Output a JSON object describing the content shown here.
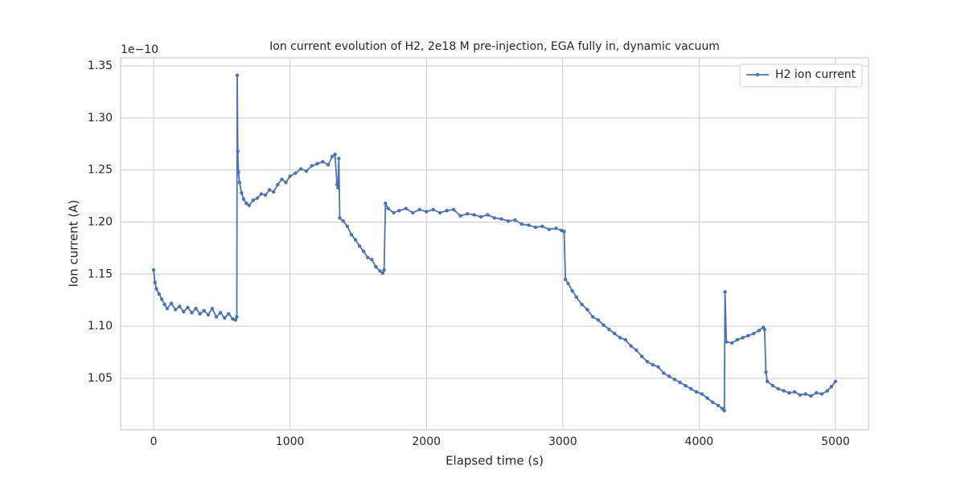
{
  "chart_data": {
    "type": "line",
    "title": "Ion current evolution of H2, 2e18 M pre-injection, EGA fully in, dynamic vacuum",
    "xlabel": "Elapsed time (s)",
    "ylabel": "Ion current (A)",
    "y_offset_label": "1e−10",
    "xlim": [
      -242,
      5242
    ],
    "ylim": [
      1.0006,
      1.3577
    ],
    "xticks": [
      0,
      1000,
      2000,
      3000,
      4000,
      5000
    ],
    "yticks": [
      1.05,
      {
        "value": 1.1,
        "label": "1.10"
      },
      1.15,
      {
        "value": 1.2,
        "label": "1.20"
      },
      1.25,
      {
        "value": 1.3,
        "label": "1.30"
      },
      1.35
    ],
    "grid": true,
    "legend": "upper right",
    "x": [
      0,
      10,
      20,
      40,
      60,
      80,
      100,
      130,
      160,
      190,
      220,
      250,
      280,
      310,
      340,
      370,
      400,
      430,
      460,
      490,
      520,
      550,
      580,
      600,
      610,
      613,
      617,
      622,
      630,
      645,
      660,
      680,
      700,
      730,
      760,
      790,
      820,
      850,
      880,
      910,
      940,
      970,
      1000,
      1040,
      1080,
      1120,
      1160,
      1200,
      1240,
      1280,
      1310,
      1330,
      1345,
      1352,
      1358,
      1365,
      1390,
      1420,
      1450,
      1480,
      1510,
      1540,
      1570,
      1600,
      1630,
      1660,
      1680,
      1690,
      1700,
      1720,
      1760,
      1800,
      1850,
      1900,
      1950,
      2000,
      2050,
      2100,
      2150,
      2200,
      2250,
      2300,
      2350,
      2400,
      2450,
      2500,
      2550,
      2600,
      2650,
      2700,
      2750,
      2800,
      2850,
      2900,
      2950,
      2990,
      3010,
      3020,
      3040,
      3070,
      3100,
      3140,
      3180,
      3220,
      3260,
      3300,
      3340,
      3380,
      3420,
      3460,
      3500,
      3540,
      3580,
      3620,
      3660,
      3700,
      3740,
      3780,
      3820,
      3860,
      3900,
      3940,
      3980,
      4020,
      4060,
      4100,
      4140,
      4170,
      4185,
      4190,
      4200,
      4240,
      4280,
      4320,
      4360,
      4400,
      4440,
      4470,
      4480,
      4490,
      4500,
      4540,
      4580,
      4620,
      4660,
      4700,
      4740,
      4780,
      4820,
      4860,
      4900,
      4940,
      4970,
      5000
    ],
    "series": [
      {
        "name": "H2 ion current",
        "color": "#4c72b0",
        "values": [
          1.154,
          1.142,
          1.136,
          1.131,
          1.126,
          1.121,
          1.117,
          1.122,
          1.116,
          1.119,
          1.114,
          1.118,
          1.113,
          1.117,
          1.112,
          1.115,
          1.111,
          1.117,
          1.109,
          1.113,
          1.108,
          1.112,
          1.107,
          1.106,
          1.109,
          1.341,
          1.268,
          1.248,
          1.238,
          1.228,
          1.222,
          1.218,
          1.216,
          1.221,
          1.223,
          1.227,
          1.226,
          1.231,
          1.229,
          1.236,
          1.241,
          1.238,
          1.244,
          1.247,
          1.251,
          1.249,
          1.254,
          1.256,
          1.258,
          1.255,
          1.263,
          1.265,
          1.236,
          1.233,
          1.261,
          1.204,
          1.201,
          1.196,
          1.188,
          1.183,
          1.177,
          1.172,
          1.166,
          1.164,
          1.157,
          1.153,
          1.151,
          1.154,
          1.218,
          1.213,
          1.209,
          1.211,
          1.213,
          1.209,
          1.212,
          1.21,
          1.212,
          1.209,
          1.211,
          1.212,
          1.206,
          1.208,
          1.207,
          1.205,
          1.207,
          1.204,
          1.203,
          1.201,
          1.202,
          1.198,
          1.197,
          1.195,
          1.196,
          1.193,
          1.194,
          1.192,
          1.191,
          1.145,
          1.141,
          1.134,
          1.128,
          1.121,
          1.116,
          1.109,
          1.106,
          1.101,
          1.097,
          1.093,
          1.089,
          1.087,
          1.081,
          1.077,
          1.071,
          1.066,
          1.063,
          1.061,
          1.055,
          1.052,
          1.049,
          1.046,
          1.043,
          1.04,
          1.037,
          1.035,
          1.031,
          1.027,
          1.024,
          1.021,
          1.019,
          1.133,
          1.085,
          1.084,
          1.087,
          1.089,
          1.091,
          1.093,
          1.096,
          1.099,
          1.097,
          1.056,
          1.047,
          1.043,
          1.04,
          1.038,
          1.036,
          1.037,
          1.034,
          1.035,
          1.033,
          1.036,
          1.035,
          1.038,
          1.042,
          1.047
        ]
      }
    ]
  }
}
